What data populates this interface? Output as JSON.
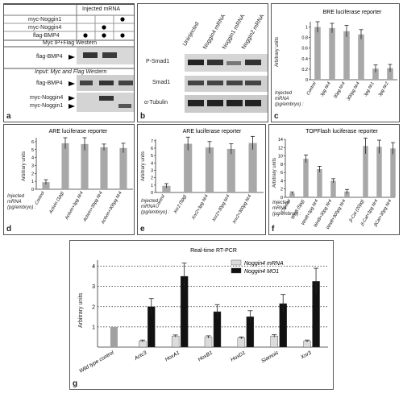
{
  "panels": {
    "a": {
      "label": "a",
      "header": "Injected mRNA",
      "rows": [
        {
          "name": "myc-Noggin1",
          "dots": [
            false,
            false,
            true
          ]
        },
        {
          "name": "myc-Noggin4",
          "dots": [
            false,
            true,
            false
          ]
        },
        {
          "name": "flag-BMP4",
          "dots": [
            true,
            true,
            true
          ]
        }
      ],
      "blot1_title": "Myc IP+Flag Western",
      "blot1_band": "flag-BMP4",
      "blot2_title": "Input: Myc and Flag Western",
      "blot2_bands": [
        "flag-BMP4",
        "myc-Noggin4",
        "myc-Noggin1"
      ]
    },
    "b": {
      "label": "b",
      "lanes": [
        "Uninjected",
        "Noggin4 mRNA",
        "Noggin1 mRNA",
        "Noggin2 mRNA"
      ],
      "bands": [
        "P-Smad1",
        "Smad1",
        "α-Tubulin"
      ]
    },
    "c": {
      "label": "c",
      "ylabel": "Arbitrary units",
      "injected_label": "Injected mRNA (pg/embryo) :"
    },
    "d": {
      "label": "d",
      "ylabel": "Arbitrary units",
      "injected_label": "Injected mRNA (pg/embryo) :"
    },
    "e": {
      "label": "e",
      "ylabel": "Arbitrary units",
      "injected_label": "Injected mRNA (pg/embryo) :"
    },
    "f": {
      "label": "f",
      "ylabel": "Arbitrary units",
      "injected_label": "Injected mRNA (pg/embryo) :"
    },
    "g": {
      "label": "g",
      "ylabel": "Arbitrary units"
    }
  },
  "chart_data": [
    {
      "id": "c",
      "type": "bar",
      "title": "BRE luciferase reporter",
      "categories": [
        "Control",
        "3pg Nr4",
        "30pg Nr4",
        "300pg Nr4",
        "3pg Nr1",
        "3pg Nr2"
      ],
      "values": [
        1.0,
        0.98,
        0.92,
        0.86,
        0.21,
        0.22
      ],
      "errors": [
        0.1,
        0.09,
        0.11,
        0.09,
        0.07,
        0.07
      ],
      "ylim": [
        0,
        1.1
      ],
      "yticks": [
        0,
        0.2,
        0.4,
        0.6,
        0.8,
        1.0
      ],
      "ytick_labels": [
        "0",
        "0.2",
        "0.4",
        "0.6",
        "0.8",
        "1"
      ],
      "color": "#a8a8a8"
    },
    {
      "id": "d",
      "type": "bar",
      "title": "ARE luciferase reporter",
      "categories": [
        "Control",
        "Activin (1pg)",
        "Activin+3pg Nr4",
        "Activin+30pg Nr4",
        "Activin+300pg Nr4"
      ],
      "values": [
        0.9,
        5.8,
        5.7,
        5.3,
        5.2
      ],
      "errors": [
        0.3,
        0.7,
        0.8,
        0.4,
        0.6
      ],
      "ylim": [
        0,
        6.5
      ],
      "yticks": [
        0,
        1,
        2,
        3,
        4,
        5,
        6
      ],
      "ytick_labels": [
        "0",
        "1",
        "2",
        "3",
        "4",
        "5",
        "6"
      ],
      "color": "#a8a8a8"
    },
    {
      "id": "e",
      "type": "bar",
      "title": "ARE luciferase reporter",
      "categories": [
        "Control",
        "Xnr2 (5pg)",
        "Xnr2+3pg Nr4",
        "Xnr2+30pg Nr4",
        "Xnr2+300pg Nr4"
      ],
      "values": [
        0.9,
        6.6,
        6.1,
        5.9,
        6.7
      ],
      "errors": [
        0.3,
        0.9,
        0.8,
        0.7,
        0.9
      ],
      "ylim": [
        0,
        7.2
      ],
      "yticks": [
        0,
        1,
        2,
        3,
        4,
        5,
        6,
        7
      ],
      "ytick_labels": [
        "0",
        "1",
        "2",
        "3",
        "4",
        "5",
        "6",
        "7"
      ],
      "color": "#a8a8a8"
    },
    {
      "id": "f",
      "type": "bar",
      "title": "TOPFlash luciferase reporter",
      "categories": [
        "Control",
        "Wnt8 (5pg)",
        "Wnt8+3pg Nr4",
        "Wnt8+30pg Nr4",
        "Wnt8+300pg Nr4",
        "β-Cat (20pg)",
        "β-Cat+3pg Nr4",
        "βCat+30pg Nr4"
      ],
      "values": [
        1.0,
        9.3,
        6.8,
        4.0,
        1.4,
        12.4,
        12.2,
        11.8
      ],
      "errors": [
        0.3,
        0.9,
        0.7,
        0.5,
        0.5,
        1.9,
        1.6,
        1.4
      ],
      "ylim": [
        0,
        14
      ],
      "yticks": [
        0,
        2,
        4,
        6,
        8,
        10,
        12,
        14
      ],
      "ytick_labels": [
        "0",
        "2",
        "4",
        "6",
        "8",
        "10",
        "12",
        "14"
      ],
      "color": "#a8a8a8"
    },
    {
      "id": "g",
      "type": "bar",
      "title": "Real-time RT-PCR",
      "categories": [
        "Wild type control",
        "Actc3",
        "HoxA1",
        "HoxB1",
        "HoxD1",
        "Siamois",
        "Xnr3"
      ],
      "series": [
        {
          "name": "Noggin4 mRNA",
          "values": [
            1.0,
            0.3,
            0.55,
            0.5,
            0.45,
            0.55,
            0.3
          ],
          "errors": [
            0,
            0.05,
            0.05,
            0.06,
            0.05,
            0.06,
            0.05
          ],
          "color": "#dcdcdc"
        },
        {
          "name": "Noggin4 MO1",
          "values": [
            null,
            2.0,
            3.5,
            1.75,
            1.5,
            2.15,
            3.25
          ],
          "errors": [
            0,
            0.4,
            0.65,
            0.35,
            0.3,
            0.45,
            0.65
          ],
          "color": "#111111"
        }
      ],
      "control_value": 1.0,
      "ylim": [
        0,
        4.3
      ],
      "yticks": [
        1,
        2,
        3,
        4
      ],
      "ytick_labels": [
        "1",
        "2",
        "3",
        "4"
      ],
      "grid": "dotted"
    }
  ]
}
